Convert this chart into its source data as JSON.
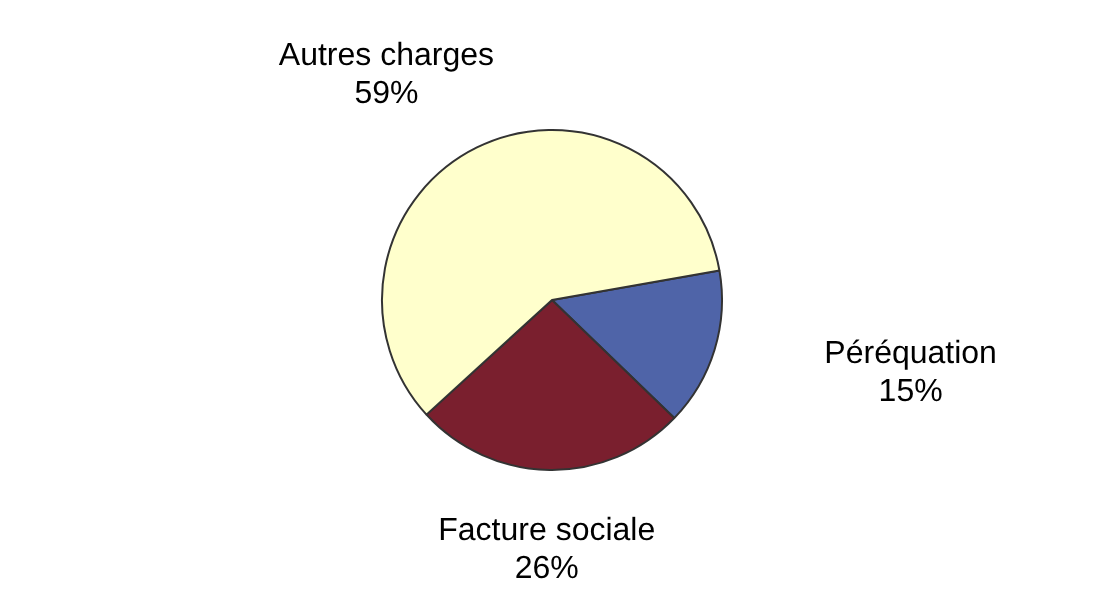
{
  "chart_data": {
    "type": "pie",
    "categories": [
      "Péréquation",
      "Facture sociale",
      "Autres charges"
    ],
    "values": [
      15,
      26,
      59
    ],
    "colors": [
      "#4f64a8",
      "#7a1f2e",
      "#ffffcc"
    ],
    "value_labels": [
      "15%",
      "26%",
      "59%"
    ],
    "legend": false
  }
}
